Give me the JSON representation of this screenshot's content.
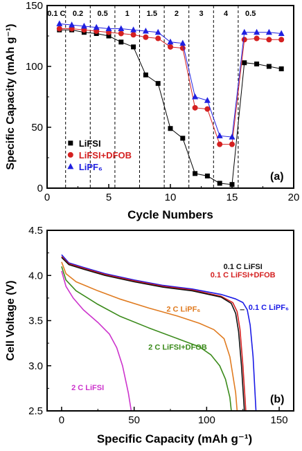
{
  "chart_data": [
    {
      "type": "line",
      "panel_label": "(a)",
      "xlabel": "Cycle Numbers",
      "ylabel": "Specific Capacity (mAh g⁻¹)",
      "xlim": [
        0,
        20
      ],
      "ylim": [
        0,
        150
      ],
      "xticks": [
        0,
        5,
        10,
        15,
        20
      ],
      "yticks": [
        0,
        50,
        100,
        150
      ],
      "rate_dividers": [
        1.5,
        3.5,
        5.5,
        7.5,
        9.5,
        11.5,
        13.5,
        15.5
      ],
      "rate_labels": [
        {
          "text": "0.1 C",
          "x": 0.75
        },
        {
          "text": "0.2",
          "x": 2.5
        },
        {
          "text": "0.5",
          "x": 4.5
        },
        {
          "text": "1",
          "x": 6.5
        },
        {
          "text": "1.5",
          "x": 8.5
        },
        {
          "text": "2",
          "x": 10.5
        },
        {
          "text": "3",
          "x": 12.5
        },
        {
          "text": "4",
          "x": 14.5
        },
        {
          "text": "0.5",
          "x": 16.5
        }
      ],
      "legend_position": "bottom-left",
      "series": [
        {
          "name": "LiFSI",
          "color": "#000000",
          "marker": "square",
          "x": [
            1,
            2,
            3,
            4,
            5,
            6,
            7,
            8,
            9,
            10,
            11,
            12,
            13,
            14,
            15,
            16,
            17,
            18,
            19
          ],
          "y": [
            130,
            130,
            128,
            127,
            125,
            120,
            116,
            93,
            86,
            49,
            41,
            12,
            10,
            4,
            3,
            103,
            102,
            100,
            98
          ]
        },
        {
          "name": "LiFSI+DFOB",
          "color": "#d42020",
          "marker": "circle",
          "x": [
            1,
            2,
            3,
            4,
            5,
            6,
            7,
            8,
            9,
            10,
            11,
            12,
            13,
            14,
            15,
            16,
            17,
            18,
            19
          ],
          "y": [
            131,
            131,
            130,
            129,
            128,
            127,
            126,
            124,
            123,
            116,
            115,
            66,
            65,
            36,
            36,
            122,
            123,
            122,
            122
          ]
        },
        {
          "name": "LiPF₆",
          "color": "#2020e0",
          "marker": "triangle",
          "x": [
            1,
            2,
            3,
            4,
            5,
            6,
            7,
            8,
            9,
            10,
            11,
            12,
            13,
            14,
            15,
            16,
            17,
            18,
            19
          ],
          "y": [
            135,
            134,
            133,
            132,
            131,
            131,
            130,
            129,
            128,
            120,
            119,
            75,
            72,
            43,
            42,
            128,
            128,
            128,
            127
          ]
        }
      ]
    },
    {
      "type": "line",
      "panel_label": "(b)",
      "xlabel": "Specific Capacity (mAh g⁻¹)",
      "ylabel": "Cell Voltage (V)",
      "xlim": [
        -10,
        160
      ],
      "ylim": [
        2.5,
        4.5
      ],
      "xticks": [
        0,
        50,
        100,
        150
      ],
      "yticks": [
        2.5,
        3.0,
        3.5,
        4.0,
        4.5
      ],
      "series": [
        {
          "name": "0.1 C LiPF₆",
          "color": "#1a1ae6",
          "points": [
            [
              0,
              4.23
            ],
            [
              5,
              4.14
            ],
            [
              15,
              4.09
            ],
            [
              30,
              4.02
            ],
            [
              50,
              3.95
            ],
            [
              70,
              3.89
            ],
            [
              90,
              3.85
            ],
            [
              110,
              3.79
            ],
            [
              120,
              3.74
            ],
            [
              125,
              3.7
            ],
            [
              128,
              3.62
            ],
            [
              130,
              3.45
            ],
            [
              132,
              3.1
            ],
            [
              133,
              2.8
            ],
            [
              134,
              2.5
            ]
          ]
        },
        {
          "name": "0.1 C LiFSI+DFOB",
          "color": "#d42020",
          "points": [
            [
              0,
              4.21
            ],
            [
              5,
              4.13
            ],
            [
              15,
              4.08
            ],
            [
              30,
              4.01
            ],
            [
              50,
              3.94
            ],
            [
              70,
              3.88
            ],
            [
              90,
              3.84
            ],
            [
              110,
              3.77
            ],
            [
              118,
              3.7
            ],
            [
              121,
              3.6
            ],
            [
              123,
              3.4
            ],
            [
              125,
              3.0
            ],
            [
              126,
              2.75
            ],
            [
              127,
              2.5
            ]
          ]
        },
        {
          "name": "0.1 C LiFSI",
          "color": "#111111",
          "points": [
            [
              0,
              4.2
            ],
            [
              5,
              4.12
            ],
            [
              15,
              4.07
            ],
            [
              30,
              4.0
            ],
            [
              50,
              3.93
            ],
            [
              70,
              3.87
            ],
            [
              90,
              3.83
            ],
            [
              110,
              3.76
            ],
            [
              117,
              3.69
            ],
            [
              120,
              3.58
            ],
            [
              122,
              3.38
            ],
            [
              124,
              3.0
            ],
            [
              125,
              2.75
            ],
            [
              126,
              2.5
            ]
          ]
        },
        {
          "name": "2 C LiPF₆",
          "color": "#e07b20",
          "points": [
            [
              0,
              4.15
            ],
            [
              3,
              4.02
            ],
            [
              10,
              3.93
            ],
            [
              25,
              3.83
            ],
            [
              40,
              3.74
            ],
            [
              60,
              3.64
            ],
            [
              80,
              3.55
            ],
            [
              95,
              3.47
            ],
            [
              105,
              3.4
            ],
            [
              112,
              3.3
            ],
            [
              116,
              3.1
            ],
            [
              118,
              2.9
            ],
            [
              120,
              2.7
            ],
            [
              121,
              2.5
            ]
          ]
        },
        {
          "name": "2 C LiFSI+DFOB",
          "color": "#3a8a1a",
          "points": [
            [
              0,
              4.1
            ],
            [
              3,
              3.95
            ],
            [
              10,
              3.83
            ],
            [
              25,
              3.68
            ],
            [
              40,
              3.55
            ],
            [
              60,
              3.42
            ],
            [
              80,
              3.3
            ],
            [
              95,
              3.21
            ],
            [
              103,
              3.12
            ],
            [
              109,
              3.0
            ],
            [
              113,
              2.85
            ],
            [
              116,
              2.65
            ],
            [
              117,
              2.5
            ]
          ]
        },
        {
          "name": "2 C LiFSI",
          "color": "#cc33cc",
          "points": [
            [
              0,
              4.05
            ],
            [
              3,
              3.88
            ],
            [
              8,
              3.75
            ],
            [
              15,
              3.62
            ],
            [
              25,
              3.48
            ],
            [
              33,
              3.35
            ],
            [
              38,
              3.2
            ],
            [
              42,
              3.0
            ],
            [
              44,
              2.85
            ],
            [
              46,
              2.7
            ],
            [
              48,
              2.5
            ]
          ]
        }
      ]
    }
  ]
}
